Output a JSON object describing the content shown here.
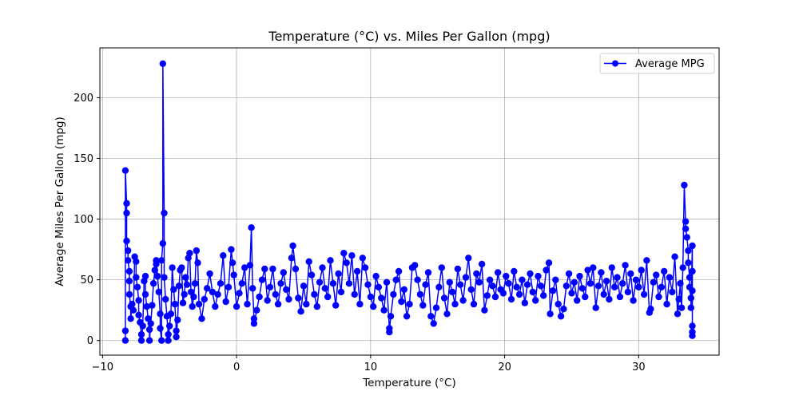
{
  "chart_data": {
    "type": "line",
    "title": "Temperature (°C) vs. Miles Per Gallon (mpg)",
    "xlabel": "Temperature (°C)",
    "ylabel": "Average Miles Per Gallon (mpg)",
    "xlim": [
      -10.2,
      36.0
    ],
    "ylim": [
      -12,
      241
    ],
    "x_ticks": [
      -10,
      0,
      10,
      20,
      30
    ],
    "y_ticks": [
      0,
      50,
      100,
      150,
      200
    ],
    "grid": true,
    "legend": {
      "placement": "top-right",
      "entries": [
        "Average MPG"
      ]
    },
    "series": [
      {
        "name": "Average MPG",
        "color": "#0000ff",
        "marker": "circle",
        "points": [
          [
            -8.3,
            0
          ],
          [
            -8.3,
            8
          ],
          [
            -8.3,
            140
          ],
          [
            -8.2,
            113
          ],
          [
            -8.2,
            105
          ],
          [
            -8.2,
            82
          ],
          [
            -8.1,
            74
          ],
          [
            -8.1,
            66
          ],
          [
            -8.0,
            57
          ],
          [
            -8.0,
            49
          ],
          [
            -8.0,
            38
          ],
          [
            -7.9,
            28
          ],
          [
            -7.9,
            18
          ],
          [
            -7.8,
            30
          ],
          [
            -7.7,
            25
          ],
          [
            -7.6,
            69
          ],
          [
            -7.5,
            65
          ],
          [
            -7.5,
            52
          ],
          [
            -7.4,
            44
          ],
          [
            -7.3,
            33
          ],
          [
            -7.3,
            21
          ],
          [
            -7.2,
            15
          ],
          [
            -7.1,
            5
          ],
          [
            -7.1,
            0
          ],
          [
            -7.0,
            12
          ],
          [
            -6.9,
            49
          ],
          [
            -6.8,
            53
          ],
          [
            -6.8,
            38
          ],
          [
            -6.7,
            28
          ],
          [
            -6.6,
            18
          ],
          [
            -6.5,
            9
          ],
          [
            -6.5,
            0
          ],
          [
            -6.4,
            14
          ],
          [
            -6.3,
            29
          ],
          [
            -6.2,
            47
          ],
          [
            -6.1,
            58
          ],
          [
            -6.0,
            63
          ],
          [
            -6.0,
            66
          ],
          [
            -5.9,
            53
          ],
          [
            -5.8,
            40
          ],
          [
            -5.7,
            22
          ],
          [
            -5.7,
            10
          ],
          [
            -5.6,
            0
          ],
          [
            -5.6,
            66
          ],
          [
            -5.5,
            80
          ],
          [
            -5.5,
            228
          ],
          [
            -5.4,
            105
          ],
          [
            -5.4,
            52
          ],
          [
            -5.3,
            34
          ],
          [
            -5.2,
            20
          ],
          [
            -5.1,
            5
          ],
          [
            -5.1,
            0
          ],
          [
            -5.0,
            12
          ],
          [
            -4.9,
            22
          ],
          [
            -4.8,
            60
          ],
          [
            -4.7,
            42
          ],
          [
            -4.6,
            30
          ],
          [
            -4.5,
            8
          ],
          [
            -4.5,
            3
          ],
          [
            -4.4,
            17
          ],
          [
            -4.3,
            45
          ],
          [
            -4.2,
            58
          ],
          [
            -4.1,
            60
          ],
          [
            -4.0,
            31
          ],
          [
            -3.9,
            38
          ],
          [
            -3.8,
            52
          ],
          [
            -3.7,
            46
          ],
          [
            -3.6,
            68
          ],
          [
            -3.5,
            72
          ],
          [
            -3.4,
            40
          ],
          [
            -3.3,
            28
          ],
          [
            -3.2,
            36
          ],
          [
            -3.1,
            47
          ],
          [
            -3.0,
            74
          ],
          [
            -2.9,
            64
          ],
          [
            -2.8,
            30
          ],
          [
            -2.6,
            18
          ],
          [
            -2.4,
            34
          ],
          [
            -2.2,
            43
          ],
          [
            -2.0,
            55
          ],
          [
            -1.8,
            40
          ],
          [
            -1.6,
            28
          ],
          [
            -1.4,
            38
          ],
          [
            -1.2,
            47
          ],
          [
            -1.0,
            70
          ],
          [
            -0.8,
            32
          ],
          [
            -0.6,
            44
          ],
          [
            -0.4,
            75
          ],
          [
            -0.3,
            64
          ],
          [
            -0.2,
            54
          ],
          [
            0.0,
            28
          ],
          [
            0.2,
            39
          ],
          [
            0.4,
            47
          ],
          [
            0.6,
            60
          ],
          [
            0.8,
            30
          ],
          [
            1.0,
            62
          ],
          [
            1.1,
            93
          ],
          [
            1.2,
            43
          ],
          [
            1.3,
            18
          ],
          [
            1.3,
            14
          ],
          [
            1.5,
            25
          ],
          [
            1.7,
            36
          ],
          [
            1.9,
            50
          ],
          [
            2.1,
            59
          ],
          [
            2.3,
            33
          ],
          [
            2.5,
            44
          ],
          [
            2.7,
            59
          ],
          [
            2.9,
            38
          ],
          [
            3.1,
            30
          ],
          [
            3.3,
            47
          ],
          [
            3.5,
            56
          ],
          [
            3.7,
            42
          ],
          [
            3.9,
            34
          ],
          [
            4.1,
            68
          ],
          [
            4.2,
            78
          ],
          [
            4.4,
            59
          ],
          [
            4.6,
            35
          ],
          [
            4.8,
            24
          ],
          [
            5.0,
            45
          ],
          [
            5.2,
            30
          ],
          [
            5.4,
            65
          ],
          [
            5.6,
            54
          ],
          [
            5.8,
            38
          ],
          [
            6.0,
            28
          ],
          [
            6.2,
            48
          ],
          [
            6.4,
            60
          ],
          [
            6.6,
            43
          ],
          [
            6.8,
            36
          ],
          [
            7.0,
            66
          ],
          [
            7.2,
            47
          ],
          [
            7.4,
            29
          ],
          [
            7.6,
            55
          ],
          [
            7.8,
            40
          ],
          [
            8.0,
            72
          ],
          [
            8.2,
            64
          ],
          [
            8.4,
            47
          ],
          [
            8.6,
            70
          ],
          [
            8.8,
            38
          ],
          [
            9.0,
            57
          ],
          [
            9.2,
            30
          ],
          [
            9.4,
            68
          ],
          [
            9.6,
            60
          ],
          [
            9.8,
            46
          ],
          [
            10.0,
            36
          ],
          [
            10.2,
            28
          ],
          [
            10.4,
            53
          ],
          [
            10.6,
            44
          ],
          [
            10.8,
            35
          ],
          [
            11.0,
            25
          ],
          [
            11.2,
            48
          ],
          [
            11.4,
            10
          ],
          [
            11.4,
            7
          ],
          [
            11.5,
            20
          ],
          [
            11.7,
            38
          ],
          [
            11.9,
            50
          ],
          [
            12.1,
            57
          ],
          [
            12.3,
            32
          ],
          [
            12.5,
            42
          ],
          [
            12.7,
            20
          ],
          [
            12.9,
            30
          ],
          [
            13.1,
            60
          ],
          [
            13.3,
            62
          ],
          [
            13.5,
            50
          ],
          [
            13.7,
            38
          ],
          [
            13.9,
            29
          ],
          [
            14.1,
            46
          ],
          [
            14.3,
            56
          ],
          [
            14.5,
            20
          ],
          [
            14.7,
            14
          ],
          [
            14.9,
            27
          ],
          [
            15.1,
            44
          ],
          [
            15.3,
            60
          ],
          [
            15.5,
            35
          ],
          [
            15.7,
            22
          ],
          [
            15.9,
            48
          ],
          [
            16.1,
            40
          ],
          [
            16.3,
            30
          ],
          [
            16.5,
            59
          ],
          [
            16.7,
            46
          ],
          [
            16.9,
            33
          ],
          [
            17.1,
            52
          ],
          [
            17.3,
            68
          ],
          [
            17.5,
            42
          ],
          [
            17.7,
            30
          ],
          [
            17.9,
            55
          ],
          [
            18.1,
            48
          ],
          [
            18.3,
            63
          ],
          [
            18.5,
            25
          ],
          [
            18.7,
            37
          ],
          [
            18.9,
            50
          ],
          [
            19.1,
            45
          ],
          [
            19.3,
            36
          ],
          [
            19.5,
            56
          ],
          [
            19.7,
            42
          ],
          [
            19.9,
            39
          ],
          [
            20.1,
            53
          ],
          [
            20.3,
            47
          ],
          [
            20.5,
            34
          ],
          [
            20.7,
            57
          ],
          [
            20.9,
            44
          ],
          [
            21.1,
            38
          ],
          [
            21.3,
            50
          ],
          [
            21.5,
            31
          ],
          [
            21.7,
            46
          ],
          [
            21.9,
            55
          ],
          [
            22.1,
            40
          ],
          [
            22.3,
            33
          ],
          [
            22.5,
            53
          ],
          [
            22.7,
            45
          ],
          [
            22.9,
            37
          ],
          [
            23.1,
            58
          ],
          [
            23.3,
            64
          ],
          [
            23.4,
            22
          ],
          [
            23.6,
            41
          ],
          [
            23.8,
            50
          ],
          [
            24.0,
            30
          ],
          [
            24.2,
            20
          ],
          [
            24.4,
            26
          ],
          [
            24.6,
            45
          ],
          [
            24.8,
            55
          ],
          [
            25.0,
            39
          ],
          [
            25.2,
            48
          ],
          [
            25.4,
            33
          ],
          [
            25.6,
            53
          ],
          [
            25.8,
            43
          ],
          [
            26.0,
            36
          ],
          [
            26.2,
            58
          ],
          [
            26.4,
            47
          ],
          [
            26.6,
            60
          ],
          [
            26.8,
            27
          ],
          [
            27.0,
            45
          ],
          [
            27.2,
            56
          ],
          [
            27.4,
            38
          ],
          [
            27.6,
            49
          ],
          [
            27.8,
            34
          ],
          [
            28.0,
            60
          ],
          [
            28.2,
            44
          ],
          [
            28.4,
            52
          ],
          [
            28.6,
            36
          ],
          [
            28.8,
            47
          ],
          [
            29.0,
            62
          ],
          [
            29.2,
            40
          ],
          [
            29.4,
            55
          ],
          [
            29.6,
            33
          ],
          [
            29.8,
            50
          ],
          [
            30.0,
            44
          ],
          [
            30.2,
            58
          ],
          [
            30.4,
            38
          ],
          [
            30.6,
            66
          ],
          [
            30.8,
            23
          ],
          [
            30.9,
            26
          ],
          [
            31.1,
            48
          ],
          [
            31.3,
            54
          ],
          [
            31.5,
            36
          ],
          [
            31.7,
            44
          ],
          [
            31.9,
            57
          ],
          [
            32.1,
            30
          ],
          [
            32.3,
            52
          ],
          [
            32.5,
            40
          ],
          [
            32.7,
            69
          ],
          [
            32.9,
            22
          ],
          [
            33.0,
            34
          ],
          [
            33.1,
            47
          ],
          [
            33.2,
            27
          ],
          [
            33.3,
            60
          ],
          [
            33.4,
            128
          ],
          [
            33.5,
            98
          ],
          [
            33.5,
            92
          ],
          [
            33.6,
            85
          ],
          [
            33.7,
            74
          ],
          [
            33.7,
            64
          ],
          [
            33.8,
            52
          ],
          [
            33.8,
            44
          ],
          [
            33.9,
            35
          ],
          [
            33.9,
            27
          ],
          [
            34.0,
            78
          ],
          [
            34.0,
            57
          ],
          [
            34.0,
            41
          ],
          [
            34.0,
            12
          ],
          [
            34.0,
            7
          ],
          [
            34.0,
            4
          ]
        ]
      }
    ]
  }
}
